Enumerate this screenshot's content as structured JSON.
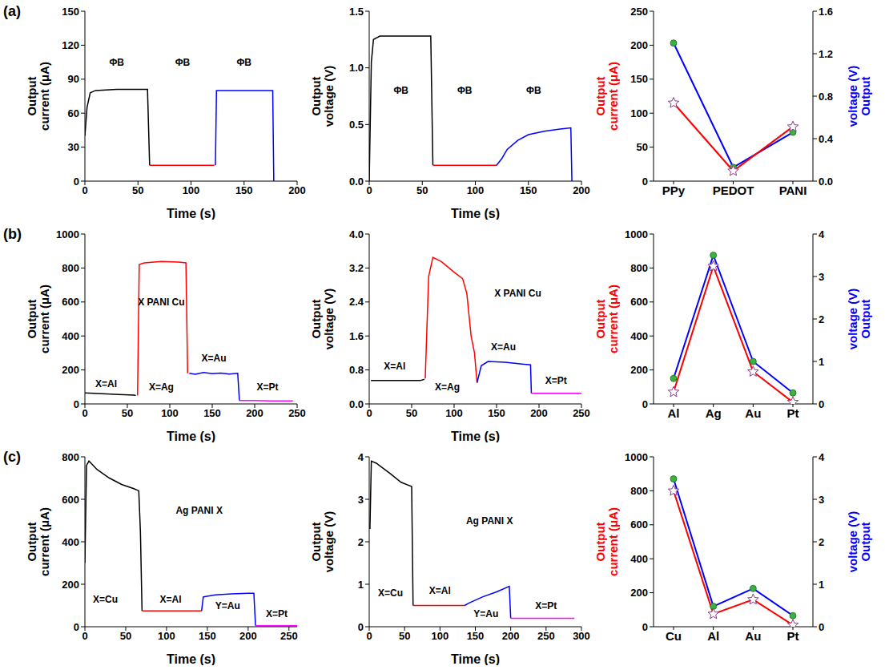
{
  "chart_data": [
    {
      "type": "line",
      "panel_label": "(a)",
      "xlabel": "Time (s)",
      "ylabel": "Output current (μA)",
      "xlim": [
        0,
        200
      ],
      "xticks": [
        0,
        50,
        100,
        150,
        200
      ],
      "ylim": [
        0,
        150
      ],
      "yticks": [
        0,
        30,
        60,
        90,
        120,
        150
      ],
      "series": [
        {
          "color": "#000000",
          "x": [
            0,
            2,
            5,
            10,
            30,
            59,
            61
          ],
          "values": [
            40,
            65,
            78,
            80,
            81,
            81,
            14
          ]
        },
        {
          "color": "#ff0000",
          "x": [
            61,
            90,
            122
          ],
          "values": [
            14,
            14,
            14
          ]
        },
        {
          "color": "#0000ff",
          "x": [
            123,
            124,
            150,
            177,
            178
          ],
          "values": [
            14,
            80,
            80,
            80,
            0
          ]
        }
      ],
      "annotations": [
        {
          "text": "ΦB",
          "x": 30,
          "y": 105
        },
        {
          "text": "ΦB",
          "x": 92,
          "y": 105
        },
        {
          "text": "ΦB",
          "x": 150,
          "y": 105
        }
      ]
    },
    {
      "type": "line",
      "xlabel": "Time (s)",
      "ylabel": "Output voltage (V)",
      "xlim": [
        0,
        200
      ],
      "xticks": [
        0,
        50,
        100,
        150,
        200
      ],
      "ylim": [
        0,
        1.5
      ],
      "yticks": [
        {
          "value": 0,
          "label": "0.0"
        },
        0.5,
        {
          "value": 1,
          "label": "1.0"
        },
        1.5
      ],
      "series": [
        {
          "color": "#000000",
          "x": [
            0,
            2,
            4,
            10,
            58,
            60
          ],
          "values": [
            0,
            1.05,
            1.25,
            1.28,
            1.28,
            0.14
          ]
        },
        {
          "color": "#ff0000",
          "x": [
            60,
            120
          ],
          "values": [
            0.14,
            0.14
          ]
        },
        {
          "color": "#0000ff",
          "x": [
            120,
            125,
            130,
            140,
            150,
            165,
            180,
            190,
            191
          ],
          "values": [
            0.14,
            0.2,
            0.28,
            0.36,
            0.41,
            0.44,
            0.46,
            0.47,
            0
          ]
        }
      ],
      "annotations": [
        {
          "text": "ΦB",
          "x": 30,
          "y": 0.8
        },
        {
          "text": "ΦB",
          "x": 90,
          "y": 0.8
        },
        {
          "text": "ΦB",
          "x": 155,
          "y": 0.8
        }
      ]
    },
    {
      "type": "line",
      "categories": [
        "PPy",
        "PEDOT",
        "PANI"
      ],
      "ylabel": "Output current (μA)",
      "y2label": "Output voltage (V)",
      "ylim": [
        0,
        250
      ],
      "yticks": [
        0,
        50,
        100,
        150,
        200,
        250
      ],
      "y2lim": [
        0,
        1.6
      ],
      "y2ticks": [
        {
          "value": 0,
          "label": "0.0"
        },
        0.4,
        0.8,
        1.2,
        1.6
      ],
      "series": [
        {
          "color": "#0000ff",
          "marker": "circle",
          "axis": "y2",
          "values": [
            1.3,
            0.13,
            0.46
          ]
        },
        {
          "color": "#ff0000",
          "marker": "star",
          "values": [
            115,
            15,
            80
          ]
        }
      ]
    },
    {
      "type": "line",
      "panel_label": "(b)",
      "xlabel": "Time (s)",
      "ylabel": "Output current (μA)",
      "xlim": [
        0,
        250
      ],
      "xticks": [
        0,
        50,
        100,
        150,
        200,
        250
      ],
      "ylim": [
        0,
        1000
      ],
      "yticks": [
        0,
        200,
        400,
        600,
        800,
        1000
      ],
      "series": [
        {
          "color": "#000000",
          "x": [
            0,
            20,
            40,
            58,
            60
          ],
          "values": [
            65,
            60,
            55,
            52,
            50
          ]
        },
        {
          "color": "#ff0000",
          "x": [
            62,
            64,
            70,
            90,
            110,
            119,
            121
          ],
          "values": [
            50,
            820,
            830,
            838,
            835,
            830,
            180
          ]
        },
        {
          "color": "#0000ff",
          "x": [
            123,
            130,
            140,
            150,
            160,
            170,
            180,
            182
          ],
          "values": [
            180,
            175,
            185,
            178,
            182,
            176,
            180,
            20
          ]
        },
        {
          "color": "#ff00ff",
          "x": [
            182,
            200,
            220,
            245
          ],
          "values": [
            20,
            20,
            18,
            18
          ]
        }
      ],
      "annotations": [
        {
          "text": "X=Al",
          "x": 25,
          "y": 120
        },
        {
          "text": "X=Ag",
          "x": 90,
          "y": 100
        },
        {
          "text": "X=Au",
          "x": 152,
          "y": 270
        },
        {
          "text": "X=Pt",
          "x": 215,
          "y": 100
        },
        {
          "text": "X PANI Cu",
          "x": 90,
          "y": 600
        }
      ]
    },
    {
      "type": "line",
      "xlabel": "Time (s)",
      "ylabel": "Output voltage (V)",
      "xlim": [
        0,
        250
      ],
      "xticks": [
        0,
        50,
        100,
        150,
        200,
        250
      ],
      "ylim": [
        0,
        4
      ],
      "yticks": [
        {
          "value": 0,
          "label": "0.0"
        },
        0.8,
        1.6,
        2.4,
        3.2,
        {
          "value": 4,
          "label": "4.0"
        }
      ],
      "series": [
        {
          "color": "#000000",
          "x": [
            2,
            60,
            65
          ],
          "values": [
            0.55,
            0.55,
            0.58
          ]
        },
        {
          "color": "#ff0000",
          "x": [
            66,
            70,
            75,
            85,
            100,
            110,
            115,
            120,
            124,
            127
          ],
          "values": [
            0.6,
            3.0,
            3.45,
            3.35,
            3.1,
            2.95,
            2.6,
            1.6,
            1.2,
            0.5
          ]
        },
        {
          "color": "#0000ff",
          "x": [
            127,
            132,
            140,
            160,
            180,
            190,
            191
          ],
          "values": [
            0.5,
            0.9,
            1.0,
            0.98,
            0.94,
            0.92,
            0.25
          ]
        },
        {
          "color": "#ff00ff",
          "x": [
            191,
            220,
            250
          ],
          "values": [
            0.25,
            0.25,
            0.25
          ]
        }
      ],
      "annotations": [
        {
          "text": "X=Al",
          "x": 30,
          "y": 0.9
        },
        {
          "text": "X=Ag",
          "x": 92,
          "y": 0.4
        },
        {
          "text": "X=Au",
          "x": 158,
          "y": 1.35
        },
        {
          "text": "X=Pt",
          "x": 220,
          "y": 0.55
        },
        {
          "text": "X PANI Cu",
          "x": 175,
          "y": 2.6
        }
      ]
    },
    {
      "type": "line",
      "categories": [
        "Al",
        "Ag",
        "Au",
        "Pt"
      ],
      "ylabel": "Output current (μA)",
      "y2label": "Output voltage (V)",
      "ylim": [
        0,
        1000
      ],
      "yticks": [
        0,
        200,
        400,
        600,
        800,
        1000
      ],
      "y2lim": [
        0,
        4
      ],
      "y2ticks": [
        0,
        1,
        2,
        3,
        4
      ],
      "series": [
        {
          "color": "#0000ff",
          "marker": "circle",
          "axis": "y2",
          "values": [
            0.6,
            3.5,
            1.0,
            0.26
          ]
        },
        {
          "color": "#ff0000",
          "marker": "star",
          "values": [
            70,
            810,
            190,
            10
          ]
        }
      ]
    },
    {
      "type": "line",
      "panel_label": "(c)",
      "xlabel": "Time (s)",
      "ylabel": "Output current (μA)",
      "xlim": [
        0,
        260
      ],
      "xticks": [
        0,
        50,
        100,
        150,
        200,
        250
      ],
      "ylim": [
        0,
        800
      ],
      "yticks": [
        0,
        200,
        400,
        600,
        800
      ],
      "series": [
        {
          "color": "#000000",
          "x": [
            0,
            2,
            5,
            15,
            30,
            45,
            60,
            66,
            68,
            70
          ],
          "values": [
            300,
            760,
            780,
            740,
            700,
            670,
            650,
            640,
            450,
            75
          ]
        },
        {
          "color": "#ff0000",
          "x": [
            70,
            100,
            143
          ],
          "values": [
            75,
            75,
            75
          ]
        },
        {
          "color": "#0000ff",
          "x": [
            143,
            145,
            160,
            180,
            200,
            207,
            209
          ],
          "values": [
            75,
            140,
            150,
            155,
            158,
            158,
            5
          ]
        },
        {
          "color": "#ff00ff",
          "x": [
            209,
            235,
            260
          ],
          "values": [
            5,
            5,
            5
          ]
        }
      ],
      "annotations": [
        {
          "text": "X=Cu",
          "x": 25,
          "y": 130
        },
        {
          "text": "X=Al",
          "x": 105,
          "y": 130
        },
        {
          "text": "Y=Au",
          "x": 175,
          "y": 100
        },
        {
          "text": "X=Pt",
          "x": 235,
          "y": 60
        },
        {
          "text": "Ag PANI X",
          "x": 140,
          "y": 550
        }
      ]
    },
    {
      "type": "line",
      "xlabel": "Time (s)",
      "ylabel": "Output voltage (V)",
      "xlim": [
        0,
        300
      ],
      "xticks": [
        0,
        50,
        100,
        150,
        200,
        250,
        300
      ],
      "ylim": [
        0,
        4
      ],
      "yticks": [
        0,
        1,
        2,
        3,
        4
      ],
      "series": [
        {
          "color": "#000000",
          "x": [
            1,
            3,
            10,
            30,
            45,
            60,
            62
          ],
          "values": [
            2.3,
            3.9,
            3.85,
            3.6,
            3.4,
            3.3,
            0.5
          ]
        },
        {
          "color": "#ff0000",
          "x": [
            62,
            100,
            135
          ],
          "values": [
            0.5,
            0.5,
            0.5
          ]
        },
        {
          "color": "#0000ff",
          "x": [
            135,
            140,
            160,
            180,
            198,
            200
          ],
          "values": [
            0.5,
            0.55,
            0.7,
            0.82,
            0.95,
            0.2
          ]
        },
        {
          "color": "#ff00ff",
          "x": [
            200,
            250,
            290
          ],
          "values": [
            0.2,
            0.2,
            0.2
          ]
        }
      ],
      "annotations": [
        {
          "text": "X=Cu",
          "x": 30,
          "y": 0.8
        },
        {
          "text": "X=Al",
          "x": 100,
          "y": 0.85
        },
        {
          "text": "Y=Au",
          "x": 165,
          "y": 0.3
        },
        {
          "text": "X=Pt",
          "x": 250,
          "y": 0.5
        },
        {
          "text": "Ag PANI X",
          "x": 170,
          "y": 2.5
        }
      ]
    },
    {
      "type": "line",
      "categories": [
        "Cu",
        "Al",
        "Au",
        "Pt"
      ],
      "ylabel": "Output current (μA)",
      "y2label": "Output voltage (V)",
      "ylim": [
        0,
        1000
      ],
      "yticks": [
        0,
        200,
        400,
        600,
        800,
        1000
      ],
      "y2lim": [
        0,
        4
      ],
      "y2ticks": [
        0,
        1,
        2,
        3,
        4
      ],
      "series": [
        {
          "color": "#0000ff",
          "marker": "circle",
          "axis": "y2",
          "values": [
            3.48,
            0.48,
            0.9,
            0.26
          ]
        },
        {
          "color": "#ff0000",
          "marker": "star",
          "values": [
            800,
            75,
            160,
            10
          ]
        }
      ]
    }
  ]
}
